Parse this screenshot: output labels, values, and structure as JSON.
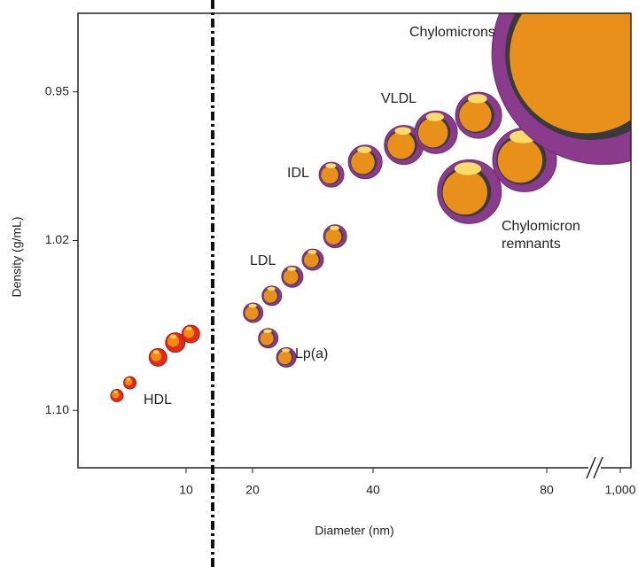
{
  "chart_data": {
    "type": "scatter",
    "x_label": "Diameter (nm)",
    "y_label": "Density (g/mL)",
    "xlim": [
      5,
      1100
    ],
    "xticks": [
      10,
      20,
      40,
      80,
      {
        "value": 1000,
        "label": "1,000"
      }
    ],
    "ylim": [
      1.127,
      0.913
    ],
    "yticks": [
      0.95,
      1.02,
      {
        "value": 1.1,
        "label": "1.10"
      }
    ],
    "series": [
      {
        "name": "HDL",
        "color": "#e02a1c",
        "x": [
          6.8,
          7.4,
          8.7,
          9.5,
          10.7
        ],
        "values": [
          1.093,
          1.087,
          1.075,
          1.068,
          1.064
        ]
      },
      {
        "name": "LDL",
        "color": "#8a3b8c",
        "x": [
          20.1,
          23.2,
          26.6,
          30,
          33.7
        ],
        "values": [
          1.054,
          1.046,
          1.037,
          1.029,
          1.018
        ]
      },
      {
        "name": "Lp(a)",
        "color": "#8a3b8c",
        "x": [
          22.6,
          25.6
        ],
        "values": [
          1.066,
          1.075
        ]
      },
      {
        "name": "IDL",
        "color": "#8a3b8c",
        "x": [
          33.1,
          38.7
        ],
        "values": [
          0.989,
          0.983
        ]
      },
      {
        "name": "VLDL",
        "color": "#8a3b8c",
        "x": [
          47.1,
          54.5,
          64.3
        ],
        "values": [
          0.975,
          0.969,
          0.961
        ]
      },
      {
        "name": "Chylomicron remnants",
        "color": "#8a3b8c",
        "x": [
          62.2,
          74.9
        ],
        "values": [
          0.997,
          0.982
        ]
      },
      {
        "name": "Chylomicrons",
        "color": "#8a3b8c",
        "x": [
          780
        ],
        "values": [
          0.932
        ]
      }
    ]
  }
}
